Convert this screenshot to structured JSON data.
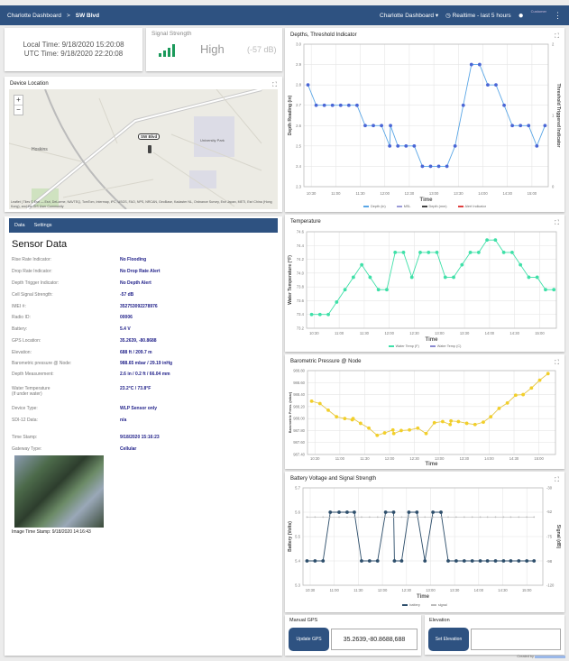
{
  "header": {
    "crumb_root": "Charlotte Dashboard",
    "crumb_sep": ">",
    "crumb_current": "SW Blvd",
    "dashboard_select": "Charlotte Dashboard",
    "time_range": "Realtime - last 5 hours",
    "user_role": "Customer"
  },
  "time_card": {
    "local": "Local Time: 9/18/2020 15:20:08",
    "utc": "UTC Time: 9/18/2020 22:20:08"
  },
  "signal_card": {
    "label": "Signal Strength",
    "level": "High",
    "db": "(-57 dB)",
    "bars_filled": 4,
    "color": "#1b9a5b"
  },
  "map": {
    "title": "Device Location",
    "marker_label": "SW Blvd",
    "zoom_in": "+",
    "zoom_out": "−",
    "places": [
      "Hoskins",
      "University Park"
    ],
    "attribution": "Leaflet | Tiles © Esri — Esri, DeLorme, NAVTEQ, TomTom, Intermap, iPC, USGS, FAO, NPS, NRCAN, GeoBase, Kadaster NL, Ordnance Survey, Esri Japan, METI, Esri China (Hong Kong), and the GIS User Community"
  },
  "sensor": {
    "tabs": [
      "Data",
      "Settings"
    ],
    "title": "Sensor Data",
    "rows": [
      {
        "label": "Rise Rate Indicator:",
        "value": "No Flooding"
      },
      {
        "label": "Drop Rate Indicator:",
        "value": "No Drop Rate Alert"
      },
      {
        "label": "Depth Trigger Indicator:",
        "value": "No Depth Alert"
      },
      {
        "label": "Cell Signal Strength:",
        "value": "-57 dB"
      },
      {
        "label": "IMEI #:",
        "value": "352753092278976"
      },
      {
        "label": "Radio ID:",
        "value": "00006"
      },
      {
        "label": "Battery:",
        "value": "5.4 V"
      },
      {
        "label": "GPS Location:",
        "value": "35.2639, -80.8688"
      },
      {
        "label": "Elevation:",
        "value": "688 ft / 209.7 m"
      },
      {
        "label": "Barometric pressure @ Node:",
        "value": "988.65 mbar / 29.19 inHg"
      },
      {
        "label": "Depth Measurement:",
        "value": "2.6 in / 0.2 ft / 66.04 mm"
      },
      {
        "label": "Water Temperature",
        "label2": "(if under water)",
        "value": "23.2°C / 73.8°F"
      },
      {
        "label": "Device Type:",
        "value": "WLP Sensor only"
      },
      {
        "label": "SDI-12 Data:",
        "value": "n/a"
      },
      {
        "label": "Time Stamp:",
        "value": "9/18/2020 15:16:23"
      },
      {
        "label": "Gateway Type:",
        "value": "Cellular"
      }
    ],
    "image_caption": "Image Time Stamp: 9/18/2020 14:16:43"
  },
  "manual_gps": {
    "title": "Manual GPS",
    "button": "Update GPS",
    "value": "35.2639,-80.8688,688"
  },
  "elevation": {
    "title": "Elevation",
    "button": "Set Elevation",
    "value": ""
  },
  "footer": {
    "text": "Created by"
  },
  "chart_data": [
    {
      "id": "depth",
      "type": "line",
      "title": "Depths, Threshold Indicator",
      "xlabel": "Time",
      "ylabel": "Depth Reading (in)",
      "y2label": "Threshold Triggered Indicator",
      "xlim": [
        "10:21",
        "15:20"
      ],
      "x_ticks": [
        "10:30",
        "11:00",
        "11:30",
        "12:00",
        "12:30",
        "13:00",
        "13:30",
        "14:00",
        "14:30",
        "15:00"
      ],
      "ylim": [
        2.3,
        3.0
      ],
      "y_ticks": [
        2.3,
        2.4,
        2.5,
        2.6,
        2.7,
        2.8,
        2.9,
        3.0
      ],
      "y_tick_labels": [
        "2.3",
        "2.4",
        "2.5",
        "2.6",
        "2.7",
        "2.8",
        "2.9",
        "3.0"
      ],
      "y2lim": [
        0,
        2
      ],
      "y2_ticks": [
        0,
        1,
        2
      ],
      "y2_tick_labels": [
        "0",
        "1",
        "2"
      ],
      "grid": true,
      "legend": "bottom",
      "legend_items": [
        {
          "name": "Depth (in)",
          "color": "#5aa6e6"
        },
        {
          "name": "MSL",
          "color": "#9b9bd8"
        },
        {
          "name": "Depth (mm)",
          "color": "#444444"
        },
        {
          "name": "Alert Indicator",
          "color": "#e04040"
        }
      ],
      "series": [
        {
          "name": "Depth (in)",
          "color": "#5aa6e6",
          "marker": "#4a66d6",
          "x": [
            "10:26",
            "10:36",
            "10:46",
            "10:56",
            "11:06",
            "11:16",
            "11:26",
            "11:36",
            "11:46",
            "11:56",
            "12:06",
            "12:07",
            "12:16",
            "12:26",
            "12:36",
            "12:46",
            "12:56",
            "13:06",
            "13:16",
            "13:26",
            "13:36",
            "13:46",
            "13:56",
            "14:06",
            "14:16",
            "14:26",
            "14:36",
            "14:46",
            "14:56",
            "15:06",
            "15:16"
          ],
          "y": [
            2.8,
            2.7,
            2.7,
            2.7,
            2.7,
            2.7,
            2.7,
            2.6,
            2.6,
            2.6,
            2.5,
            2.6,
            2.5,
            2.5,
            2.5,
            2.4,
            2.4,
            2.4,
            2.4,
            2.5,
            2.7,
            2.9,
            2.9,
            2.8,
            2.8,
            2.7,
            2.6,
            2.6,
            2.6,
            2.5,
            2.6
          ]
        }
      ]
    },
    {
      "id": "temp",
      "type": "line",
      "title": "Temperature",
      "xlabel": "Time",
      "ylabel": "Water Temperature (°F)",
      "xlim": [
        "10:21",
        "15:20"
      ],
      "x_ticks": [
        "10:30",
        "11:00",
        "11:30",
        "12:00",
        "12:30",
        "13:00",
        "13:30",
        "14:00",
        "14:30",
        "15:00"
      ],
      "ylim": [
        73.2,
        74.6
      ],
      "y_ticks": [
        73.2,
        73.4,
        73.6,
        73.8,
        74.0,
        74.2,
        74.4,
        74.6
      ],
      "y_tick_labels": [
        "73.2",
        "73.4",
        "73.6",
        "73.8",
        "74.0",
        "74.2",
        "74.4",
        "74.6"
      ],
      "grid": true,
      "legend": "bottom",
      "legend_items": [
        {
          "name": "Water Temp (F)",
          "color": "#3fe0a8"
        },
        {
          "name": "Water Temp (C)",
          "color": "#8a8ad0"
        }
      ],
      "series": [
        {
          "name": "Water Temp (F)",
          "color": "#3fe0a8",
          "marker": "#3fe0a8",
          "x": [
            "10:27",
            "10:37",
            "10:47",
            "10:57",
            "11:07",
            "11:17",
            "11:27",
            "11:37",
            "11:47",
            "11:57",
            "12:07",
            "12:17",
            "12:27",
            "12:37",
            "12:47",
            "12:57",
            "13:07",
            "13:17",
            "13:27",
            "13:37",
            "13:47",
            "13:57",
            "14:07",
            "14:17",
            "14:27",
            "14:37",
            "14:47",
            "14:57",
            "15:07",
            "15:17"
          ],
          "y": [
            73.4,
            73.4,
            73.4,
            73.58,
            73.76,
            73.94,
            74.12,
            73.94,
            73.76,
            73.76,
            74.3,
            74.3,
            73.94,
            74.3,
            74.3,
            74.3,
            73.94,
            73.94,
            74.12,
            74.3,
            74.3,
            74.48,
            74.48,
            74.3,
            74.3,
            74.12,
            73.94,
            73.94,
            73.76,
            73.76
          ]
        }
      ]
    },
    {
      "id": "press",
      "type": "line",
      "title": "Barometric Pressure @ Node",
      "xlabel": "Time",
      "ylabel": "Barometric Press. (mbar)",
      "xlim": [
        "10:21",
        "15:20"
      ],
      "x_ticks": [
        "10:30",
        "11:00",
        "11:30",
        "12:00",
        "12:30",
        "13:00",
        "13:30",
        "14:00",
        "14:30",
        "15:00"
      ],
      "ylim": [
        987.4,
        988.8
      ],
      "y_ticks": [
        987.4,
        987.6,
        987.8,
        988.0,
        988.2,
        988.4,
        988.6,
        988.8
      ],
      "y_tick_labels": [
        "987.40",
        "987.60",
        "987.80",
        "988.00",
        "988.20",
        "988.40",
        "988.60",
        "988.80"
      ],
      "grid": true,
      "legend": "none",
      "series": [
        {
          "color": "#e6c84a",
          "marker": "#f2cf2a",
          "x": [
            "10:26",
            "10:36",
            "10:46",
            "10:56",
            "11:06",
            "11:15",
            "11:16",
            "11:25",
            "11:35",
            "11:45",
            "11:54",
            "12:04",
            "12:05",
            "12:14",
            "12:24",
            "12:34",
            "12:44",
            "12:54",
            "13:04",
            "13:13",
            "13:14",
            "13:23",
            "13:33",
            "13:43",
            "13:53",
            "14:02",
            "14:12",
            "14:22",
            "14:32",
            "14:41",
            "14:51",
            "15:01",
            "15:11"
          ],
          "y": [
            988.29,
            988.25,
            988.14,
            988.03,
            988.0,
            987.98,
            988.0,
            987.92,
            987.84,
            987.72,
            987.76,
            987.81,
            987.75,
            987.8,
            987.81,
            987.84,
            987.75,
            987.93,
            987.95,
            987.9,
            987.96,
            987.95,
            987.92,
            987.9,
            987.94,
            988.03,
            988.17,
            988.26,
            988.39,
            988.4,
            988.51,
            988.64,
            988.75
          ]
        }
      ]
    },
    {
      "id": "batt",
      "type": "line",
      "title": "Battery Voltage and Signal Strength",
      "xlabel": "Time",
      "ylabel": "Battery (Volts)",
      "y2label": "Signal (dB)",
      "xlim": [
        "10:21",
        "15:20"
      ],
      "x_ticks": [
        "10:30",
        "11:00",
        "11:30",
        "12:00",
        "12:30",
        "13:00",
        "13:30",
        "14:00",
        "14:30",
        "15:00"
      ],
      "ylim": [
        5.3,
        5.7
      ],
      "y_ticks": [
        5.3,
        5.4,
        5.5,
        5.6,
        5.7
      ],
      "y_tick_labels": [
        "5.3",
        "5.4",
        "5.5",
        "5.6",
        "5.7"
      ],
      "y2lim": [
        -120,
        -30
      ],
      "y2_ticks": [
        -120,
        -98,
        -75,
        -52,
        -30
      ],
      "y2_tick_labels": [
        "-120",
        "-98",
        "-75",
        "-52",
        "-30"
      ],
      "grid": true,
      "legend": "bottom",
      "legend_items": [
        {
          "name": "battery",
          "color": "#2d4e6b"
        },
        {
          "name": "signal",
          "color": "#bbbbbb"
        }
      ],
      "series": [
        {
          "name": "battery",
          "color": "#2d4e6b",
          "marker": "#2d4e6b",
          "axis": "y",
          "x": [
            "10:26",
            "10:36",
            "10:46",
            "10:55",
            "11:06",
            "11:16",
            "11:25",
            "11:34",
            "11:44",
            "11:54",
            "12:04",
            "12:14",
            "12:15",
            "12:24",
            "12:33",
            "12:43",
            "12:53",
            "13:03",
            "13:13",
            "13:22",
            "13:32",
            "13:42",
            "13:52",
            "14:02",
            "14:11",
            "14:21",
            "14:31",
            "14:40",
            "14:50",
            "15:00",
            "15:09"
          ],
          "y": [
            5.4,
            5.4,
            5.4,
            5.6,
            5.6,
            5.6,
            5.6,
            5.4,
            5.4,
            5.4,
            5.6,
            5.6,
            5.4,
            5.4,
            5.6,
            5.6,
            5.4,
            5.6,
            5.6,
            5.4,
            5.4,
            5.4,
            5.4,
            5.4,
            5.4,
            5.4,
            5.4,
            5.4,
            5.4,
            5.4,
            5.4
          ]
        },
        {
          "name": "signal",
          "color": "#bbbbbb",
          "marker": "#bbbbbb",
          "axis": "y2",
          "x": [
            "10:26",
            "10:36",
            "10:46",
            "10:55",
            "11:06",
            "11:16",
            "11:25",
            "11:34",
            "11:44",
            "11:54",
            "12:04",
            "12:14",
            "12:24",
            "12:33",
            "12:43",
            "12:53",
            "13:03",
            "13:13",
            "13:22",
            "13:32",
            "13:42",
            "13:52",
            "14:02",
            "14:11",
            "14:21",
            "14:31",
            "14:40",
            "14:50",
            "15:00",
            "15:09"
          ],
          "y": [
            -57,
            -57,
            -57,
            -57,
            -57,
            -57,
            -57,
            -57,
            -57,
            -57,
            -57,
            -57,
            -57,
            -57,
            -57,
            -57,
            -57,
            -57,
            -57,
            -57,
            -57,
            -57,
            -57,
            -57,
            -57,
            -57,
            -57,
            -57,
            -57,
            -57
          ]
        }
      ]
    }
  ]
}
